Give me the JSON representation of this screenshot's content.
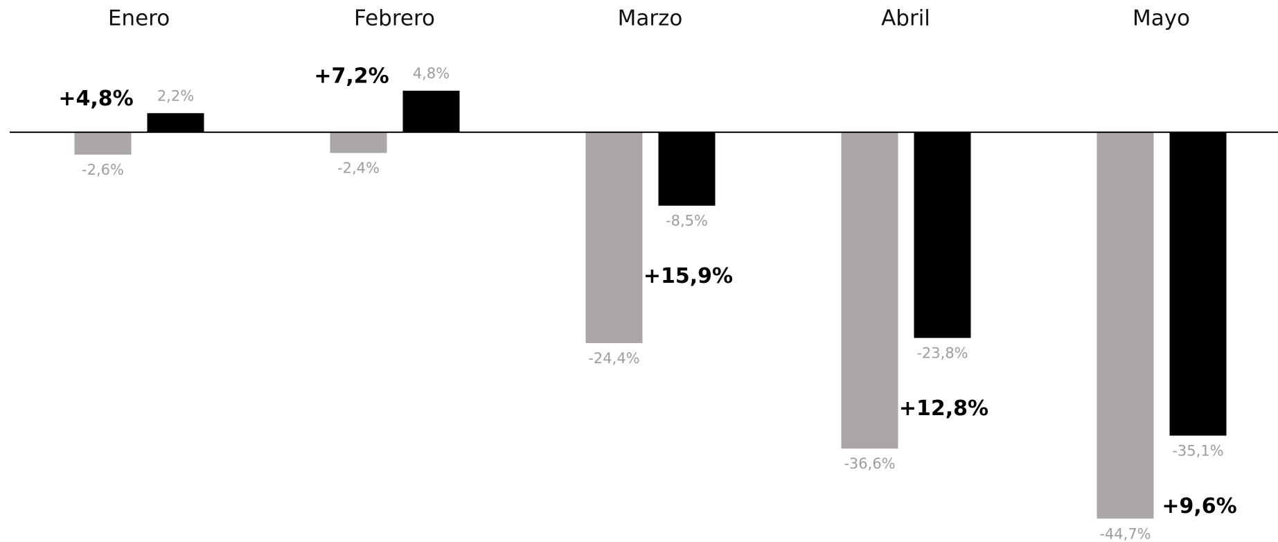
{
  "chart_data": {
    "type": "bar",
    "categories": [
      "Enero",
      "Febrero",
      "Marzo",
      "Abril",
      "Mayo"
    ],
    "series": [
      {
        "color": "#aba7a6",
        "values": [
          -2.6,
          -2.4,
          -24.4,
          -36.6,
          -44.7
        ],
        "value_labels": [
          "-2,6%",
          "-2,4%",
          "-24,4%",
          "-36,6%",
          "-44,7%"
        ]
      },
      {
        "color": "#000000",
        "values": [
          2.2,
          4.8,
          -8.5,
          -23.8,
          -35.1
        ],
        "value_labels": [
          "2,2%",
          "4,8%",
          "-8,5%",
          "-23,8%",
          "-35,1%"
        ]
      }
    ],
    "annotations": [
      "+4,8%",
      "+7,2%",
      "+15,9%",
      "+12,8%",
      "+9,6%"
    ],
    "ylim": [
      -45,
      10
    ]
  }
}
